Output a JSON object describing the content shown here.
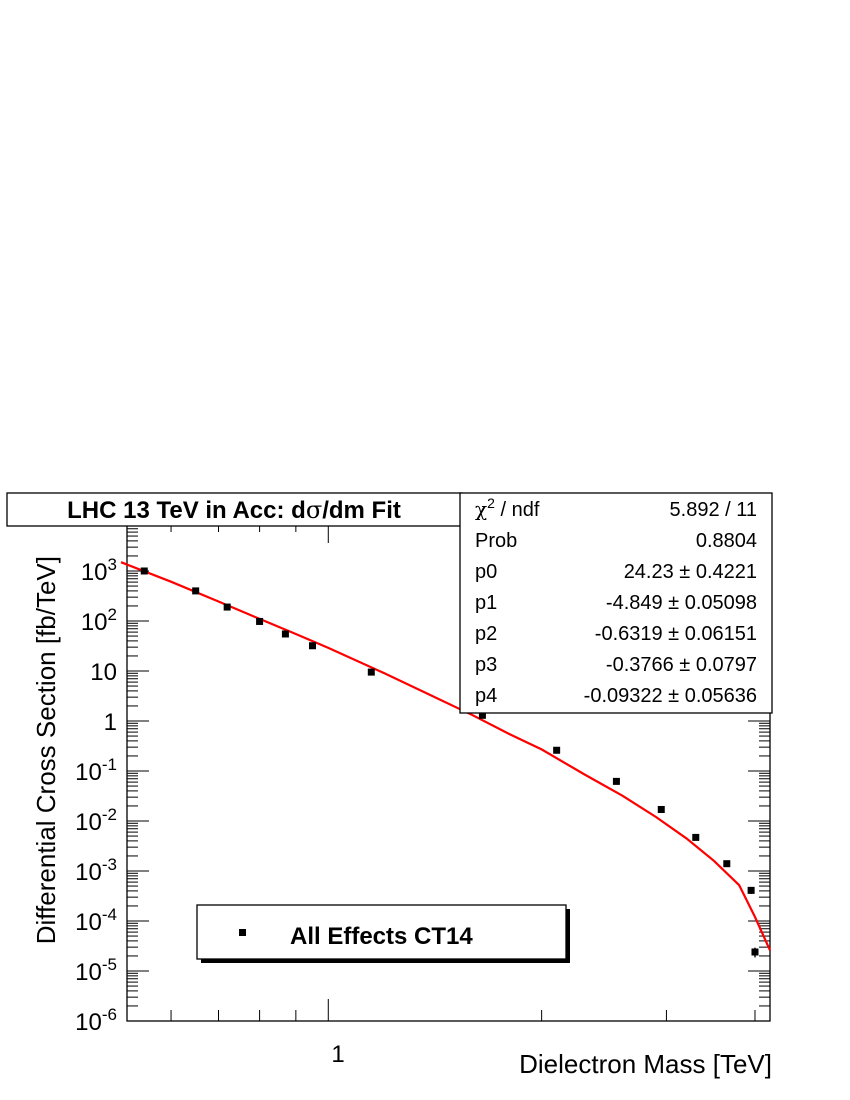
{
  "title": {
    "prefix": "LHC 13 TeV in Acc: d",
    "sigma": "σ",
    "suffix": "/dm Fit"
  },
  "axes": {
    "xlabel": "Dielectron Mass  [TeV]",
    "ylabel": "Differential Cross Section [fb/TeV]",
    "x_tick_label": "1",
    "y_tick_labels": [
      {
        "base": "10",
        "exp": "-6"
      },
      {
        "base": "10",
        "exp": "-5"
      },
      {
        "base": "10",
        "exp": "-4"
      },
      {
        "base": "10",
        "exp": "-3"
      },
      {
        "base": "10",
        "exp": "-2"
      },
      {
        "base": "10",
        "exp": "-1"
      },
      {
        "base": "1",
        "exp": ""
      },
      {
        "base": "10",
        "exp": ""
      },
      {
        "base": "10",
        "exp": "2"
      },
      {
        "base": "10",
        "exp": "3"
      }
    ]
  },
  "stats": {
    "rows": [
      {
        "label": "χ",
        "label_sup": "2",
        "label_tail": " / ndf",
        "value": "5.892 / 11"
      },
      {
        "label": "Prob",
        "label_sup": "",
        "label_tail": "",
        "value": "0.8804"
      },
      {
        "label": "p0",
        "label_sup": "",
        "label_tail": "",
        "value": "24.23 ± 0.4221"
      },
      {
        "label": "p1",
        "label_sup": "",
        "label_tail": "",
        "value": "-4.849 ± 0.05098"
      },
      {
        "label": "p2",
        "label_sup": "",
        "label_tail": "",
        "value": "-0.6319 ± 0.06151"
      },
      {
        "label": "p3",
        "label_sup": "",
        "label_tail": "",
        "value": "-0.3766 ± 0.0797"
      },
      {
        "label": "p4",
        "label_sup": "",
        "label_tail": "",
        "value": "-0.09322 ± 0.05636"
      }
    ]
  },
  "legend": {
    "label": "All Effects CT14"
  },
  "colors": {
    "fit": "#ff0000",
    "markers": "#000000"
  },
  "chart_data": {
    "type": "scatter",
    "log_x": true,
    "log_y": true,
    "xlim": [
      0.52,
      4.2
    ],
    "ylim": [
      1e-06,
      10000
    ],
    "grid": false,
    "legend_position": "bottom-center",
    "series": [
      {
        "name": "All Effects CT14",
        "x": [
          0.55,
          0.65,
          0.72,
          0.8,
          0.87,
          0.95,
          1.15,
          1.65,
          2.1,
          2.55,
          2.95,
          3.3,
          3.65,
          3.95,
          4.0
        ],
        "y": [
          1000,
          400,
          190,
          98,
          55,
          32,
          9.5,
          1.3,
          0.26,
          0.062,
          0.017,
          0.0047,
          0.0014,
          0.00041,
          2.4e-05
        ],
        "y_err_rel": [
          0.03,
          0.04,
          0.05,
          0.05,
          0.06,
          0.07,
          0.08,
          0.08,
          0.09,
          0.1,
          0.1,
          0.12,
          0.12,
          0.15,
          0.22
        ]
      }
    ],
    "fit": {
      "x": [
        0.51,
        0.6,
        0.7,
        0.8,
        0.9,
        1.0,
        1.2,
        1.4,
        1.6,
        1.8,
        2.0,
        2.3,
        2.6,
        2.9,
        3.2,
        3.5,
        3.8,
        4.0,
        4.2
      ],
      "y": [
        1500,
        610,
        245,
        110,
        55,
        29,
        9.0,
        3.2,
        1.3,
        0.55,
        0.27,
        0.085,
        0.032,
        0.012,
        0.0045,
        0.0016,
        0.00052,
        0.00012,
        2.6e-05
      ]
    }
  }
}
